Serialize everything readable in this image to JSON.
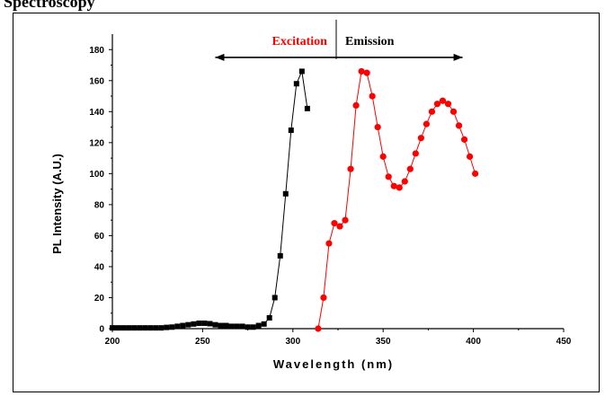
{
  "header": {
    "text": "Spectroscopy"
  },
  "chart_data": {
    "type": "line",
    "xlabel": "Wavelength (nm)",
    "ylabel": "PL Intensity (A.U.)",
    "xlim": [
      200,
      450
    ],
    "ylim": [
      0,
      190
    ],
    "x_ticks": [
      200,
      250,
      300,
      350,
      400,
      450
    ],
    "y_ticks": [
      0,
      20,
      40,
      60,
      80,
      100,
      120,
      140,
      160,
      180
    ],
    "grid": false,
    "legend": "none",
    "annotations": {
      "left_label": "Excitation",
      "right_label": "Emission"
    },
    "colors": {
      "excitation": "#000000",
      "emission": "#ff0000",
      "arrow": "#000000"
    },
    "series": [
      {
        "marker": "square",
        "x": [
          200,
          203,
          206,
          209,
          212,
          215,
          218,
          221,
          224,
          227,
          230,
          233,
          236,
          239,
          242,
          245,
          248,
          251,
          254,
          257,
          260,
          263,
          266,
          269,
          272,
          275,
          278,
          281,
          284,
          287,
          290,
          293,
          296,
          299,
          302,
          305,
          308
        ],
        "y": [
          0.5,
          0.5,
          0.5,
          0.5,
          0.5,
          0.5,
          0.5,
          0.5,
          0.5,
          0.5,
          0.8,
          1,
          1.5,
          2,
          2.5,
          3,
          3.5,
          3.5,
          3.2,
          2.5,
          2,
          2,
          1.5,
          1.5,
          1.5,
          1,
          1,
          2,
          3,
          7,
          20,
          47,
          87,
          128,
          158,
          166,
          142
        ]
      },
      {
        "marker": "circle",
        "x": [
          314,
          317,
          320,
          323,
          326,
          329,
          332,
          335,
          338,
          341,
          344,
          347,
          350,
          353,
          356,
          359,
          362,
          365,
          368,
          371,
          374,
          377,
          380,
          383,
          386,
          389,
          392,
          395,
          398,
          401
        ],
        "y": [
          0,
          20,
          55,
          68,
          66,
          70,
          103,
          144,
          166,
          165,
          150,
          130,
          111,
          98,
          92,
          91,
          95,
          103,
          113,
          123,
          132,
          140,
          145,
          147,
          145,
          140,
          131,
          122,
          111,
          100
        ]
      }
    ]
  }
}
